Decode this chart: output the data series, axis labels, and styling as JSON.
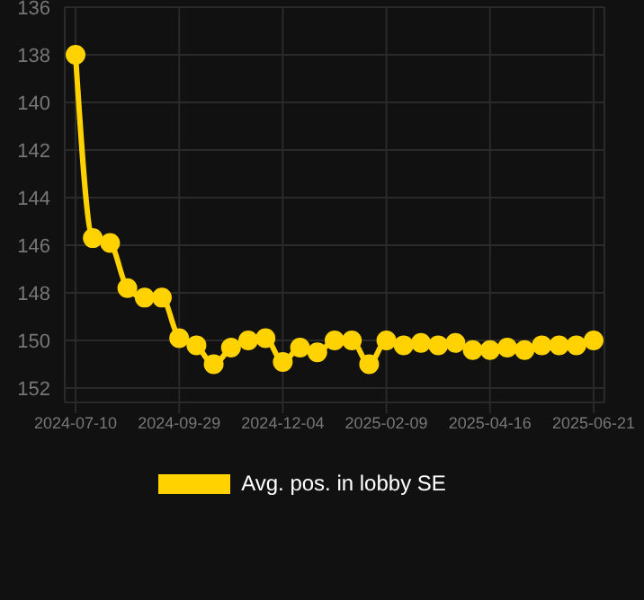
{
  "chart_data": {
    "type": "line",
    "categories": [
      "2024-07-10",
      null,
      null,
      null,
      null,
      null,
      "2024-09-29",
      null,
      null,
      null,
      null,
      null,
      "2024-12-04",
      null,
      null,
      null,
      null,
      null,
      "2025-02-09",
      null,
      null,
      null,
      null,
      null,
      "2025-04-16",
      null,
      null,
      null,
      null,
      null,
      "2025-06-21"
    ],
    "series": [
      {
        "name": "Avg. pos. in lobby SE",
        "color": "#ffd200",
        "values": [
          138.0,
          145.7,
          145.9,
          147.8,
          148.2,
          148.2,
          149.9,
          150.2,
          151.0,
          150.3,
          150.0,
          149.9,
          150.9,
          150.3,
          150.5,
          150.0,
          150.0,
          151.0,
          150.0,
          150.2,
          150.1,
          150.2,
          150.1,
          150.4,
          150.4,
          150.3,
          150.4,
          150.2,
          150.2,
          150.2,
          150.0
        ]
      }
    ],
    "ylim": [
      152.6,
      136
    ],
    "yticks": [
      136,
      138,
      140,
      142,
      144,
      146,
      148,
      150,
      152
    ],
    "grid": true,
    "legend": "bottom",
    "marker": "circle",
    "line_style": "solid"
  }
}
